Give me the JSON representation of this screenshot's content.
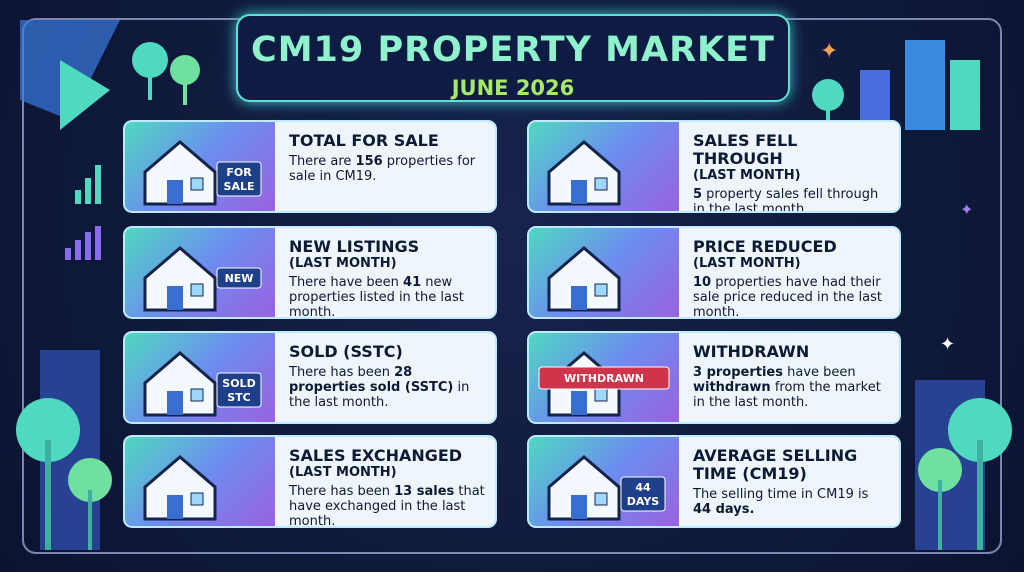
{
  "header": {
    "title": "CM19 PROPERTY MARKET",
    "subtitle": "JUNE 2026"
  },
  "cards": [
    {
      "title": "TOTAL FOR SALE",
      "text": [
        "There are ",
        "156",
        " properties for sale in CM19."
      ],
      "icon_label": [
        "FOR",
        "SALE"
      ]
    },
    {
      "title": "NEW LISTINGS",
      "subtitle": "(LAST MONTH)",
      "text": [
        "There have been ",
        "41",
        " new properties listed in the last month."
      ],
      "icon_label": [
        "NEW"
      ]
    },
    {
      "title": "SOLD (SSTC)",
      "text": [
        "There has been ",
        "28 properties sold (SSTC)",
        " in the last month."
      ],
      "icon_label": [
        "SOLD",
        "STC"
      ]
    },
    {
      "title": "SALES EXCHANGED",
      "subtitle": "(LAST MONTH)",
      "text": [
        "There has been ",
        "13 sales",
        " that have exchanged in the last month."
      ]
    },
    {
      "title": "SALES FELL THROUGH",
      "subtitle": "(LAST MONTH)",
      "text": [
        "5",
        " property sales fell through in the last month."
      ]
    },
    {
      "title": "PRICE REDUCED",
      "subtitle": "(LAST MONTH)",
      "text": [
        "10",
        " properties have had their sale price reduced in the last month."
      ]
    },
    {
      "title": "WITHDRAWN",
      "text": [
        "3 properties",
        " have been ",
        "withdrawn",
        " from the market in the last month."
      ],
      "icon_label": [
        "WITHDRAWN"
      ]
    },
    {
      "title": "AVERAGE SELLING TIME (CM19)",
      "text": [
        "The selling time in CM19 is ",
        "44 days."
      ],
      "icon_label": [
        "44",
        "DAYS"
      ]
    }
  ]
}
